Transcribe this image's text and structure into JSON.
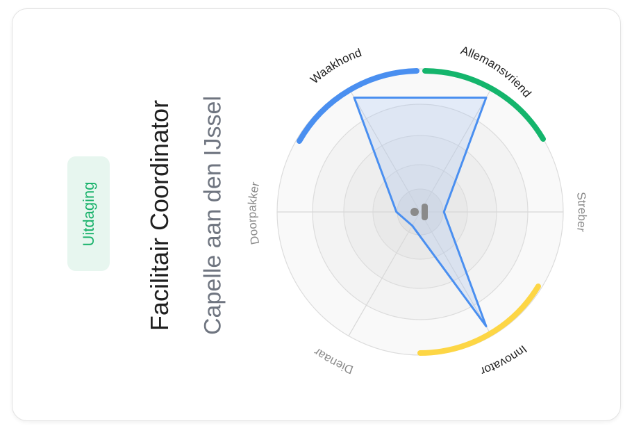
{
  "badge": {
    "label": "Uitdaging"
  },
  "role": {
    "title": "Facilitair Coordinator",
    "location": "Capelle aan den IJssel"
  },
  "colors": {
    "accent_green": "#19b26b",
    "badge_bg": "#e7f6ef",
    "arc_blue": "#4a8ff0",
    "arc_green": "#14b56c",
    "arc_yellow": "#fdd645",
    "polygon_stroke": "#4a8ff0"
  },
  "center_icon": "figure-icon",
  "chart_data": {
    "type": "radar",
    "axes": [
      "Streber",
      "Allemansvriend",
      "Waakhond",
      "Doorpakker",
      "Dienaar",
      "Innovator"
    ],
    "values": [
      0.18,
      1.0,
      1.0,
      0.18,
      0.12,
      1.0
    ],
    "highlighted": {
      "Waakhond": "#4a8ff0",
      "Allemansvriend": "#14b56c",
      "Innovator": "#fdd645"
    },
    "rings": 4
  }
}
